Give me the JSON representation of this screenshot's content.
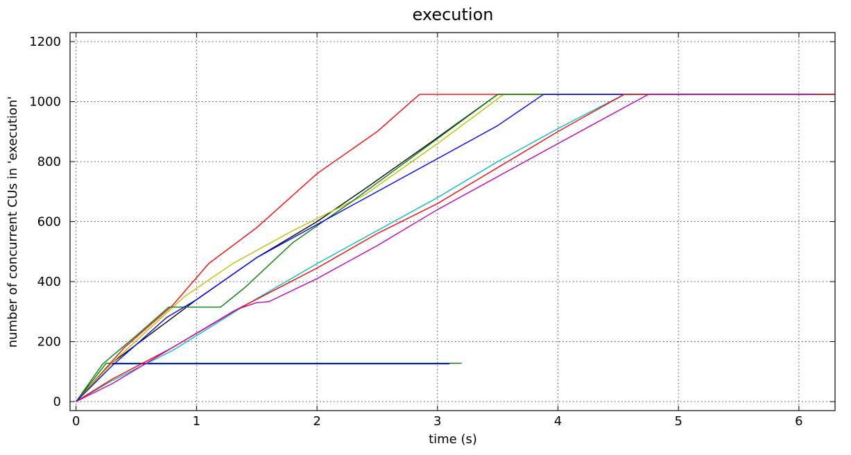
{
  "chart_data": {
    "type": "line",
    "title": "execution",
    "xlabel": "time (s)",
    "ylabel": "number of concurrent CUs in 'execution'",
    "xlim": [
      -0.05,
      6.3
    ],
    "ylim": [
      -30,
      1230
    ],
    "grid": true,
    "legend": "none",
    "x_ticks": [
      0,
      1,
      2,
      3,
      4,
      5,
      6
    ],
    "x_tick_labels": [
      "0",
      "1",
      "2",
      "3",
      "4",
      "5",
      "6"
    ],
    "y_ticks": [
      0,
      200,
      400,
      600,
      800,
      1000,
      1200
    ],
    "y_tick_labels": [
      "0",
      "200",
      "400",
      "600",
      "800",
      "1000",
      "1200"
    ],
    "series": [
      {
        "color": "#008000",
        "x": [
          0,
          0.25,
          3.2
        ],
        "y": [
          0,
          128,
          128
        ]
      },
      {
        "color": "#0000ff",
        "x": [
          0,
          0.28,
          0.3,
          3.1
        ],
        "y": [
          0,
          125,
          126,
          126
        ]
      },
      {
        "color": "#ff0000",
        "x": [
          0,
          0.4,
          0.8,
          1.1,
          1.5,
          2.0,
          2.5,
          2.85,
          6.3
        ],
        "y": [
          0,
          180,
          320,
          460,
          580,
          760,
          900,
          1024,
          1024
        ]
      },
      {
        "color": "#000000",
        "x": [
          0,
          0.3,
          0.6,
          1.0,
          1.5,
          2.0,
          2.4,
          3.0,
          3.5,
          6.3
        ],
        "y": [
          0,
          130,
          220,
          340,
          480,
          600,
          710,
          880,
          1024,
          1024
        ]
      },
      {
        "color": "#bfbf00",
        "x": [
          0,
          0.3,
          0.6,
          0.9,
          1.3,
          1.8,
          2.4,
          3.0,
          3.55,
          6.3
        ],
        "y": [
          0,
          130,
          240,
          350,
          460,
          570,
          690,
          860,
          1024,
          1024
        ]
      },
      {
        "color": "#008000",
        "x": [
          0,
          0.22,
          0.5,
          0.77,
          1.2,
          1.4,
          1.8,
          2.3,
          3.5,
          6.3
        ],
        "y": [
          0,
          125,
          220,
          315,
          315,
          380,
          530,
          670,
          1024,
          1024
        ]
      },
      {
        "color": "#0000ff",
        "x": [
          0,
          0.3,
          0.5,
          0.75,
          1.0,
          1.5,
          2.0,
          2.5,
          3.0,
          3.5,
          3.88,
          6.3
        ],
        "y": [
          0,
          120,
          190,
          280,
          340,
          480,
          590,
          700,
          810,
          920,
          1024,
          1024
        ]
      },
      {
        "color": "#00bfbf",
        "x": [
          0,
          0.3,
          0.8,
          1.4,
          2.0,
          2.5,
          3.0,
          3.5,
          4.0,
          4.55,
          6.3
        ],
        "y": [
          0,
          70,
          170,
          320,
          460,
          570,
          680,
          800,
          910,
          1024,
          1024
        ]
      },
      {
        "color": "#ff0000",
        "x": [
          0,
          0.3,
          0.8,
          1.3,
          2.0,
          2.5,
          3.0,
          3.5,
          4.0,
          4.55,
          6.3
        ],
        "y": [
          0,
          75,
          180,
          300,
          445,
          560,
          660,
          780,
          900,
          1024,
          1024
        ]
      },
      {
        "color": "#bf00bf",
        "x": [
          0,
          0.3,
          0.8,
          1.35,
          1.5,
          1.6,
          2.0,
          2.5,
          3.0,
          3.5,
          4.0,
          4.75,
          6.15
        ],
        "y": [
          0,
          60,
          180,
          310,
          330,
          333,
          410,
          520,
          640,
          750,
          860,
          1024,
          1024
        ]
      }
    ]
  }
}
